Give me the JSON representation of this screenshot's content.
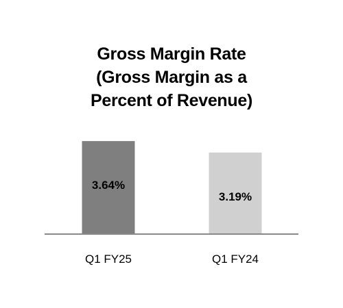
{
  "chart_data": {
    "type": "bar",
    "title_lines": [
      "Gross Margin Rate",
      "(Gross Margin as a",
      "Percent of Revenue)"
    ],
    "categories": [
      "Q1 FY25",
      "Q1 FY24"
    ],
    "values": [
      3.64,
      3.19
    ],
    "value_labels": [
      "3.64%",
      "3.19%"
    ],
    "bar_colors": [
      "#7f7f7f",
      "#d0d0d0"
    ],
    "axis_line_color": "#888888",
    "ylim": [
      0,
      3.75
    ],
    "grid": false,
    "legend": "none"
  }
}
